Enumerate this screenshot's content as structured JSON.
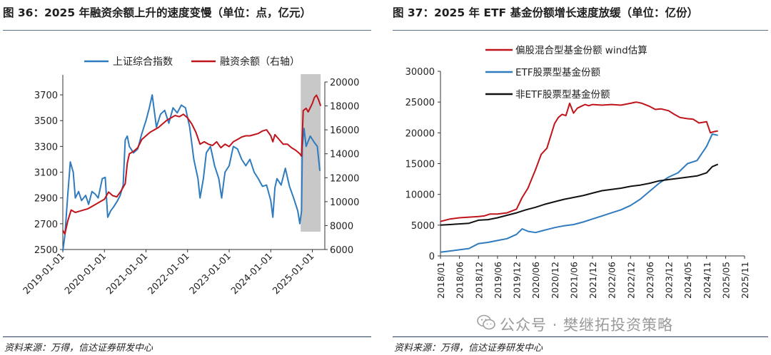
{
  "watermark": "公众号 · 樊继拓投资策略",
  "chart_data": [
    {
      "type": "line",
      "title": "图 36：2025 年融资余额上升的速度变慢（单位：点，亿元）",
      "source": "资料来源：万得，信达证券研发中心",
      "x_ticks": [
        "2019-01-01",
        "2020-01-01",
        "2021-01-01",
        "2022-01-01",
        "2023-01-01",
        "2024-01-01",
        "2025-01-01"
      ],
      "y_left_ticks": [
        "2500",
        "2700",
        "2900",
        "3100",
        "3300",
        "3500",
        "3700"
      ],
      "y_right_ticks": [
        "6000",
        "8000",
        "10000",
        "12000",
        "14000",
        "16000",
        "18000",
        "20000"
      ],
      "ylim_left": [
        2500,
        3800
      ],
      "ylim_right": [
        6000,
        20000
      ],
      "xlim": [
        2019.0,
        2025.3
      ],
      "shaded_region": {
        "x": [
          2024.72,
          2025.2
        ],
        "color": "#c8c8c8"
      },
      "legend_position": "top",
      "series": [
        {
          "name": "上证综合指数",
          "axis": "left",
          "color": "#2f7bbf",
          "x": [
            2019.0,
            2019.05,
            2019.12,
            2019.18,
            2019.25,
            2019.3,
            2019.38,
            2019.45,
            2019.55,
            2019.62,
            2019.7,
            2019.78,
            2019.85,
            2019.95,
            2020.02,
            2020.08,
            2020.15,
            2020.22,
            2020.3,
            2020.38,
            2020.45,
            2020.5,
            2020.55,
            2020.6,
            2020.7,
            2020.8,
            2020.9,
            2021.0,
            2021.08,
            2021.15,
            2021.25,
            2021.35,
            2021.45,
            2021.55,
            2021.65,
            2021.75,
            2021.85,
            2021.95,
            2022.05,
            2022.15,
            2022.25,
            2022.3,
            2022.38,
            2022.45,
            2022.55,
            2022.65,
            2022.75,
            2022.82,
            2022.9,
            2023.0,
            2023.1,
            2023.2,
            2023.3,
            2023.4,
            2023.5,
            2023.6,
            2023.7,
            2023.8,
            2023.9,
            2024.0,
            2024.05,
            2024.1,
            2024.15,
            2024.25,
            2024.35,
            2024.45,
            2024.55,
            2024.65,
            2024.7,
            2024.74,
            2024.76,
            2024.8,
            2024.85,
            2024.95,
            2025.05,
            2025.12,
            2025.18
          ],
          "y": [
            2490,
            2610,
            2930,
            3180,
            3100,
            2900,
            2950,
            2880,
            2920,
            2850,
            2950,
            2930,
            2900,
            3050,
            3060,
            2750,
            2800,
            2830,
            2870,
            2920,
            3000,
            3350,
            3380,
            3300,
            3250,
            3280,
            3400,
            3500,
            3600,
            3700,
            3450,
            3550,
            3580,
            3480,
            3600,
            3560,
            3620,
            3600,
            3450,
            3200,
            3050,
            2900,
            3050,
            3250,
            3300,
            3150,
            3050,
            2900,
            3100,
            3150,
            3300,
            3280,
            3200,
            3150,
            3200,
            3100,
            3050,
            2990,
            3000,
            2880,
            2750,
            2980,
            3050,
            3000,
            3130,
            2990,
            2900,
            2800,
            2700,
            2800,
            3300,
            3440,
            3300,
            3380,
            3330,
            3300,
            3110
          ]
        },
        {
          "name": "融资余额（右轴）",
          "axis": "right",
          "color": "#c0141b",
          "x": [
            2019.0,
            2019.05,
            2019.12,
            2019.2,
            2019.3,
            2019.4,
            2019.5,
            2019.6,
            2019.7,
            2019.8,
            2019.9,
            2020.0,
            2020.1,
            2020.2,
            2020.3,
            2020.4,
            2020.5,
            2020.55,
            2020.6,
            2020.7,
            2020.8,
            2020.9,
            2021.0,
            2021.1,
            2021.2,
            2021.3,
            2021.4,
            2021.5,
            2021.6,
            2021.7,
            2021.8,
            2021.9,
            2022.0,
            2022.1,
            2022.2,
            2022.3,
            2022.4,
            2022.5,
            2022.6,
            2022.7,
            2022.8,
            2022.9,
            2023.0,
            2023.1,
            2023.2,
            2023.3,
            2023.4,
            2023.5,
            2023.6,
            2023.7,
            2023.8,
            2023.9,
            2024.0,
            2024.05,
            2024.1,
            2024.2,
            2024.3,
            2024.4,
            2024.5,
            2024.6,
            2024.7,
            2024.74,
            2024.78,
            2024.85,
            2024.9,
            2025.0,
            2025.05,
            2025.1,
            2025.15,
            2025.2
          ],
          "y": [
            7600,
            7300,
            8400,
            9300,
            9100,
            9200,
            9300,
            9400,
            9600,
            9800,
            10000,
            10200,
            10800,
            10500,
            10400,
            10900,
            11500,
            13200,
            14000,
            14200,
            14500,
            15200,
            15500,
            15800,
            16000,
            16200,
            16500,
            16800,
            17000,
            17200,
            17100,
            17300,
            17000,
            16500,
            15800,
            14800,
            15000,
            14800,
            14700,
            15000,
            14500,
            14800,
            14600,
            15000,
            15200,
            15400,
            15500,
            15500,
            15600,
            15700,
            15900,
            16000,
            15500,
            15000,
            15600,
            15200,
            14800,
            14800,
            14500,
            14300,
            14000,
            13800,
            17600,
            17800,
            17500,
            18200,
            18700,
            18900,
            18500,
            18000
          ]
        }
      ]
    },
    {
      "type": "line",
      "title": "图 37：2025 年 ETF 基金份额增长速度放缓（单位：亿份）",
      "source": "资料来源：万得，信达证券研发中心",
      "x_ticks": [
        "2018/01",
        "2018/06",
        "2018/12",
        "2019/06",
        "2019/12",
        "2020/06",
        "2020/12",
        "2021/06",
        "2021/12",
        "2022/06",
        "2022/12",
        "2023/06",
        "2023/12",
        "2024/05",
        "2024/11",
        "2025/05",
        "2025/11"
      ],
      "y_ticks": [
        "0",
        "5000",
        "10000",
        "15000",
        "20000",
        "25000",
        "30000"
      ],
      "ylim": [
        0,
        30000
      ],
      "xlim": [
        0,
        16
      ],
      "legend_position": "top-left",
      "series": [
        {
          "name": "偏股混合型基金份额 wind估算",
          "color": "#c0141b",
          "x": [
            0,
            0.5,
            1,
            1.5,
            2,
            2.3,
            2.6,
            3,
            3.5,
            4,
            4.3,
            4.6,
            5,
            5.3,
            5.6,
            6,
            6.2,
            6.4,
            6.6,
            6.8,
            7,
            7.2,
            7.4,
            7.6,
            7.8,
            8,
            8.5,
            9,
            9.5,
            10,
            10.3,
            10.6,
            11,
            11.3,
            11.6,
            12,
            12.3,
            12.6,
            13,
            13.3,
            13.6,
            14,
            14.2,
            14.4,
            14.6
          ],
          "y": [
            5600,
            6000,
            6200,
            6300,
            6400,
            6500,
            6800,
            6800,
            7000,
            7600,
            9500,
            11000,
            14000,
            16500,
            17500,
            21500,
            22500,
            23000,
            22800,
            24800,
            23200,
            24000,
            24300,
            24600,
            24400,
            24600,
            24500,
            24600,
            24500,
            24800,
            25000,
            24800,
            24300,
            23800,
            23900,
            23600,
            23000,
            22500,
            22300,
            22200,
            21600,
            21800,
            20000,
            20200,
            20300
          ]
        },
        {
          "name": "ETF股票型基金份额",
          "color": "#2f7bbf",
          "x": [
            0,
            0.5,
            1,
            1.5,
            2,
            2.5,
            3,
            3.5,
            4,
            4.3,
            4.6,
            5,
            5.5,
            6,
            6.5,
            7,
            7.5,
            8,
            8.5,
            9,
            9.5,
            10,
            10.5,
            11,
            11.5,
            12,
            12.5,
            13,
            13.5,
            14,
            14.3,
            14.6
          ],
          "y": [
            600,
            800,
            1000,
            1200,
            2000,
            2200,
            2500,
            2800,
            3500,
            4400,
            4000,
            3800,
            4200,
            4600,
            4900,
            5100,
            5500,
            6000,
            6500,
            7000,
            7500,
            8200,
            9200,
            10500,
            11800,
            12800,
            13500,
            15000,
            15500,
            17800,
            19800,
            19600
          ]
        },
        {
          "name": "非ETF股票型基金份额",
          "color": "#111111",
          "x": [
            0,
            0.5,
            1,
            1.5,
            2,
            2.5,
            3,
            3.5,
            4,
            4.5,
            5,
            5.5,
            6,
            6.5,
            7,
            7.5,
            8,
            8.5,
            9,
            9.5,
            10,
            10.5,
            11,
            11.5,
            12,
            12.5,
            13,
            13.5,
            14,
            14.3,
            14.6
          ],
          "y": [
            5000,
            5100,
            5200,
            5300,
            5800,
            5900,
            6200,
            6600,
            7000,
            7500,
            7900,
            8400,
            8800,
            9200,
            9500,
            9800,
            10200,
            10600,
            10800,
            11000,
            11300,
            11500,
            11800,
            12200,
            12400,
            12600,
            12800,
            13000,
            13500,
            14500,
            14900
          ]
        }
      ]
    }
  ]
}
